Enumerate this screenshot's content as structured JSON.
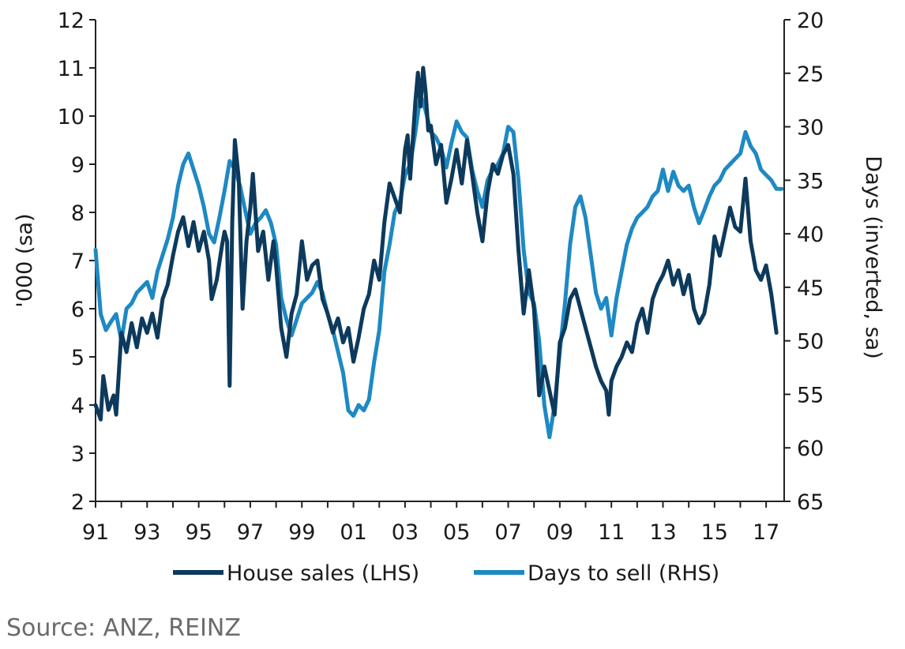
{
  "source": "Source: ANZ, REINZ",
  "chart_data": {
    "type": "line",
    "x_ticks": [
      "91",
      "93",
      "95",
      "97",
      "99",
      "01",
      "03",
      "05",
      "07",
      "09",
      "11",
      "13",
      "15",
      "17"
    ],
    "x_tick_years": [
      1991,
      1993,
      1995,
      1997,
      1999,
      2001,
      2003,
      2005,
      2007,
      2009,
      2011,
      2013,
      2015,
      2017
    ],
    "xlim": [
      1991,
      2017.7
    ],
    "left_axis": {
      "label": "'000 (sa)",
      "ylim": [
        2,
        12
      ],
      "ticks": [
        "2",
        "3",
        "4",
        "5",
        "6",
        "7",
        "8",
        "9",
        "10",
        "11",
        "12"
      ]
    },
    "right_axis": {
      "label": "Days (inverted, sa)",
      "ylim": [
        20,
        65
      ],
      "inverted": true,
      "ticks": [
        "20",
        "25",
        "30",
        "35",
        "40",
        "45",
        "50",
        "55",
        "60",
        "65"
      ]
    },
    "grid": false,
    "legend_position": "bottom",
    "series": [
      {
        "name": "House sales (LHS)",
        "axis": "left",
        "color": "#0d3a5c",
        "points": [
          [
            1991.0,
            4.0
          ],
          [
            1991.2,
            3.7
          ],
          [
            1991.3,
            4.6
          ],
          [
            1991.5,
            3.9
          ],
          [
            1991.7,
            4.2
          ],
          [
            1991.8,
            3.8
          ],
          [
            1992.0,
            5.5
          ],
          [
            1992.2,
            5.1
          ],
          [
            1992.4,
            5.7
          ],
          [
            1992.6,
            5.2
          ],
          [
            1992.8,
            5.8
          ],
          [
            1993.0,
            5.5
          ],
          [
            1993.2,
            5.9
          ],
          [
            1993.4,
            5.4
          ],
          [
            1993.6,
            6.2
          ],
          [
            1993.8,
            6.5
          ],
          [
            1994.0,
            7.1
          ],
          [
            1994.2,
            7.6
          ],
          [
            1994.4,
            7.9
          ],
          [
            1994.6,
            7.3
          ],
          [
            1994.8,
            7.8
          ],
          [
            1995.0,
            7.2
          ],
          [
            1995.2,
            7.6
          ],
          [
            1995.4,
            7.0
          ],
          [
            1995.5,
            6.2
          ],
          [
            1995.7,
            6.6
          ],
          [
            1995.9,
            7.3
          ],
          [
            1996.0,
            7.6
          ],
          [
            1996.1,
            7.4
          ],
          [
            1996.2,
            4.4
          ],
          [
            1996.3,
            7.8
          ],
          [
            1996.4,
            9.5
          ],
          [
            1996.55,
            8.7
          ],
          [
            1996.7,
            6.0
          ],
          [
            1996.85,
            7.4
          ],
          [
            1997.0,
            8.1
          ],
          [
            1997.1,
            8.8
          ],
          [
            1997.3,
            7.2
          ],
          [
            1997.5,
            7.6
          ],
          [
            1997.7,
            6.6
          ],
          [
            1997.9,
            7.4
          ],
          [
            1998.0,
            6.9
          ],
          [
            1998.2,
            5.6
          ],
          [
            1998.4,
            5.0
          ],
          [
            1998.6,
            5.9
          ],
          [
            1998.8,
            6.3
          ],
          [
            1999.0,
            7.4
          ],
          [
            1999.2,
            6.6
          ],
          [
            1999.4,
            6.9
          ],
          [
            1999.6,
            7.0
          ],
          [
            1999.8,
            6.2
          ],
          [
            2000.0,
            5.9
          ],
          [
            2000.2,
            5.5
          ],
          [
            2000.4,
            5.8
          ],
          [
            2000.6,
            5.3
          ],
          [
            2000.8,
            5.6
          ],
          [
            2001.0,
            4.9
          ],
          [
            2001.2,
            5.4
          ],
          [
            2001.4,
            6.0
          ],
          [
            2001.6,
            6.3
          ],
          [
            2001.8,
            7.0
          ],
          [
            2002.0,
            6.6
          ],
          [
            2002.2,
            7.8
          ],
          [
            2002.4,
            8.6
          ],
          [
            2002.6,
            8.3
          ],
          [
            2002.8,
            8.0
          ],
          [
            2003.0,
            9.3
          ],
          [
            2003.1,
            9.6
          ],
          [
            2003.2,
            8.7
          ],
          [
            2003.4,
            10.3
          ],
          [
            2003.5,
            10.9
          ],
          [
            2003.6,
            10.2
          ],
          [
            2003.7,
            11.0
          ],
          [
            2003.8,
            10.5
          ],
          [
            2003.9,
            9.7
          ],
          [
            2004.0,
            9.8
          ],
          [
            2004.2,
            9.0
          ],
          [
            2004.4,
            9.4
          ],
          [
            2004.6,
            8.2
          ],
          [
            2004.8,
            8.7
          ],
          [
            2005.0,
            9.3
          ],
          [
            2005.2,
            8.6
          ],
          [
            2005.4,
            9.5
          ],
          [
            2005.6,
            8.8
          ],
          [
            2005.8,
            8.0
          ],
          [
            2006.0,
            7.4
          ],
          [
            2006.2,
            8.4
          ],
          [
            2006.4,
            9.0
          ],
          [
            2006.6,
            8.8
          ],
          [
            2006.8,
            9.2
          ],
          [
            2007.0,
            9.4
          ],
          [
            2007.2,
            8.8
          ],
          [
            2007.4,
            7.2
          ],
          [
            2007.6,
            5.9
          ],
          [
            2007.8,
            6.8
          ],
          [
            2008.0,
            6.0
          ],
          [
            2008.2,
            4.2
          ],
          [
            2008.4,
            4.8
          ],
          [
            2008.6,
            4.3
          ],
          [
            2008.8,
            3.8
          ],
          [
            2009.0,
            5.3
          ],
          [
            2009.2,
            5.6
          ],
          [
            2009.4,
            6.2
          ],
          [
            2009.6,
            6.4
          ],
          [
            2009.8,
            6.0
          ],
          [
            2010.0,
            5.6
          ],
          [
            2010.2,
            5.2
          ],
          [
            2010.4,
            4.8
          ],
          [
            2010.6,
            4.5
          ],
          [
            2010.8,
            4.3
          ],
          [
            2010.9,
            3.8
          ],
          [
            2011.0,
            4.5
          ],
          [
            2011.2,
            4.8
          ],
          [
            2011.4,
            5.0
          ],
          [
            2011.6,
            5.3
          ],
          [
            2011.8,
            5.1
          ],
          [
            2012.0,
            5.7
          ],
          [
            2012.2,
            6.0
          ],
          [
            2012.4,
            5.5
          ],
          [
            2012.6,
            6.2
          ],
          [
            2012.8,
            6.5
          ],
          [
            2013.0,
            6.7
          ],
          [
            2013.2,
            7.0
          ],
          [
            2013.4,
            6.5
          ],
          [
            2013.6,
            6.8
          ],
          [
            2013.8,
            6.3
          ],
          [
            2014.0,
            6.7
          ],
          [
            2014.2,
            6.0
          ],
          [
            2014.4,
            5.7
          ],
          [
            2014.6,
            5.9
          ],
          [
            2014.8,
            6.5
          ],
          [
            2015.0,
            7.5
          ],
          [
            2015.2,
            7.1
          ],
          [
            2015.4,
            7.6
          ],
          [
            2015.6,
            8.1
          ],
          [
            2015.8,
            7.7
          ],
          [
            2016.0,
            7.6
          ],
          [
            2016.2,
            8.7
          ],
          [
            2016.4,
            7.4
          ],
          [
            2016.6,
            6.8
          ],
          [
            2016.8,
            6.6
          ],
          [
            2017.0,
            6.9
          ],
          [
            2017.2,
            6.3
          ],
          [
            2017.4,
            5.5
          ]
        ]
      },
      {
        "name": "Days to sell (RHS)",
        "axis": "right",
        "color": "#1e89c3",
        "points": [
          [
            1991.0,
            41.5
          ],
          [
            1991.2,
            47.5
          ],
          [
            1991.4,
            49
          ],
          [
            1991.6,
            48.2
          ],
          [
            1991.8,
            47.5
          ],
          [
            1992.0,
            50
          ],
          [
            1992.2,
            47
          ],
          [
            1992.4,
            46.5
          ],
          [
            1992.6,
            45.5
          ],
          [
            1992.8,
            45
          ],
          [
            1993.0,
            44.5
          ],
          [
            1993.2,
            46
          ],
          [
            1993.4,
            43.5
          ],
          [
            1993.6,
            42
          ],
          [
            1993.8,
            40.5
          ],
          [
            1994.0,
            38.5
          ],
          [
            1994.2,
            35.5
          ],
          [
            1994.4,
            33.5
          ],
          [
            1994.6,
            32.5
          ],
          [
            1994.8,
            34
          ],
          [
            1995.0,
            35.5
          ],
          [
            1995.2,
            37.5
          ],
          [
            1995.4,
            40
          ],
          [
            1995.6,
            40.8
          ],
          [
            1995.8,
            38.5
          ],
          [
            1996.0,
            36
          ],
          [
            1996.2,
            33.2
          ],
          [
            1996.4,
            34
          ],
          [
            1996.6,
            35.5
          ],
          [
            1996.8,
            37.8
          ],
          [
            1997.0,
            40
          ],
          [
            1997.2,
            39
          ],
          [
            1997.4,
            38.5
          ],
          [
            1997.6,
            37.8
          ],
          [
            1997.8,
            39
          ],
          [
            1998.0,
            41
          ],
          [
            1998.2,
            46
          ],
          [
            1998.4,
            48
          ],
          [
            1998.6,
            49.5
          ],
          [
            1998.8,
            48
          ],
          [
            1999.0,
            46.5
          ],
          [
            1999.2,
            46
          ],
          [
            1999.4,
            45.5
          ],
          [
            1999.6,
            44.5
          ],
          [
            1999.8,
            45.5
          ],
          [
            2000.0,
            47.5
          ],
          [
            2000.2,
            49
          ],
          [
            2000.4,
            51
          ],
          [
            2000.6,
            53
          ],
          [
            2000.8,
            56.5
          ],
          [
            2001.0,
            57
          ],
          [
            2001.2,
            56
          ],
          [
            2001.4,
            56.5
          ],
          [
            2001.6,
            55.5
          ],
          [
            2001.8,
            52
          ],
          [
            2002.0,
            49
          ],
          [
            2002.2,
            43.5
          ],
          [
            2002.4,
            41
          ],
          [
            2002.6,
            38
          ],
          [
            2002.8,
            37
          ],
          [
            2003.0,
            34.5
          ],
          [
            2003.2,
            33.5
          ],
          [
            2003.4,
            30.5
          ],
          [
            2003.6,
            27
          ],
          [
            2003.8,
            28.5
          ],
          [
            2004.0,
            30.5
          ],
          [
            2004.2,
            31
          ],
          [
            2004.4,
            32
          ],
          [
            2004.6,
            33.8
          ],
          [
            2004.8,
            31.5
          ],
          [
            2005.0,
            29.5
          ],
          [
            2005.2,
            30.5
          ],
          [
            2005.4,
            31
          ],
          [
            2005.6,
            34
          ],
          [
            2005.8,
            36
          ],
          [
            2006.0,
            37.5
          ],
          [
            2006.2,
            35
          ],
          [
            2006.4,
            34
          ],
          [
            2006.6,
            33.5
          ],
          [
            2006.8,
            32.5
          ],
          [
            2007.0,
            30
          ],
          [
            2007.2,
            30.5
          ],
          [
            2007.4,
            35
          ],
          [
            2007.6,
            41.5
          ],
          [
            2007.8,
            45.5
          ],
          [
            2008.0,
            46.5
          ],
          [
            2008.2,
            50
          ],
          [
            2008.4,
            56
          ],
          [
            2008.6,
            59
          ],
          [
            2008.8,
            56
          ],
          [
            2009.0,
            51
          ],
          [
            2009.2,
            46.5
          ],
          [
            2009.4,
            41
          ],
          [
            2009.6,
            37.5
          ],
          [
            2009.8,
            36.5
          ],
          [
            2010.0,
            38.5
          ],
          [
            2010.2,
            42
          ],
          [
            2010.4,
            45.5
          ],
          [
            2010.6,
            47
          ],
          [
            2010.8,
            46
          ],
          [
            2011.0,
            49.5
          ],
          [
            2011.2,
            46
          ],
          [
            2011.4,
            43.5
          ],
          [
            2011.6,
            41
          ],
          [
            2011.8,
            39.5
          ],
          [
            2012.0,
            38.5
          ],
          [
            2012.2,
            38
          ],
          [
            2012.4,
            37.5
          ],
          [
            2012.6,
            36.5
          ],
          [
            2012.8,
            36
          ],
          [
            2013.0,
            34
          ],
          [
            2013.2,
            36
          ],
          [
            2013.4,
            34.2
          ],
          [
            2013.6,
            35.5
          ],
          [
            2013.8,
            36
          ],
          [
            2014.0,
            35.5
          ],
          [
            2014.2,
            37.5
          ],
          [
            2014.4,
            39
          ],
          [
            2014.6,
            37.8
          ],
          [
            2014.8,
            36.5
          ],
          [
            2015.0,
            35.5
          ],
          [
            2015.2,
            35
          ],
          [
            2015.4,
            34
          ],
          [
            2015.6,
            33.5
          ],
          [
            2015.8,
            33
          ],
          [
            2016.0,
            32.5
          ],
          [
            2016.2,
            30.5
          ],
          [
            2016.4,
            31.8
          ],
          [
            2016.6,
            32.5
          ],
          [
            2016.8,
            34
          ],
          [
            2017.0,
            34.5
          ],
          [
            2017.2,
            35
          ],
          [
            2017.4,
            35.8
          ],
          [
            2017.6,
            35.8
          ]
        ]
      }
    ]
  }
}
